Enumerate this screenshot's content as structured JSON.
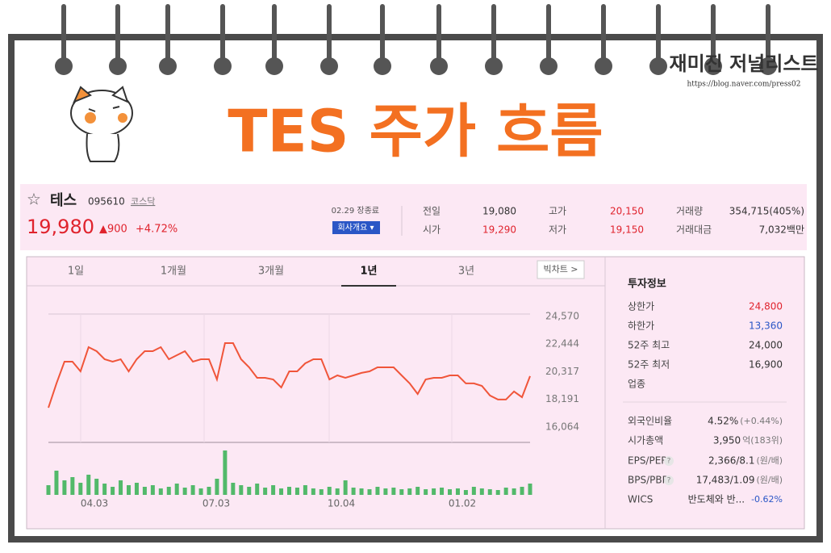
{
  "banner": {
    "title": "TES 주가 흐름",
    "blog_name": "재미진 저널리스트",
    "blog_url": "https://blog.naver.com/press02"
  },
  "stock": {
    "name": "테스",
    "code": "095610",
    "market": "코스닥",
    "price": "19,980",
    "change": "▲900",
    "change_rate": "+4.72%",
    "status": "02.29 장종료",
    "company_button": "회사개요 ▾",
    "summary": [
      {
        "label": "전일",
        "value": "19,080",
        "color": "#333333"
      },
      {
        "label": "시가",
        "value": "19,290",
        "color": "#e0232d"
      },
      {
        "label": "고가",
        "value": "20,150",
        "color": "#e0232d"
      },
      {
        "label": "저가",
        "value": "19,150",
        "color": "#e0232d"
      },
      {
        "label": "거래량",
        "value": "354,715(405%)",
        "color": "#333333"
      },
      {
        "label": "거래대금",
        "value": "7,032백만",
        "color": "#333333"
      }
    ]
  },
  "tabs": [
    "1일",
    "1개월",
    "3개월",
    "1년",
    "3년"
  ],
  "active_tab": "1년",
  "big_chart_button": "빅차트 >",
  "chart": {
    "type": "line",
    "color": "#f0553a",
    "values": [
      17550,
      19420,
      21090,
      21090,
      20350,
      22210,
      21900,
      21280,
      21090,
      21280,
      20350,
      21280,
      21900,
      21900,
      22210,
      21280,
      21590,
      21900,
      21090,
      21280,
      21280,
      19730,
      22520,
      22520,
      21280,
      20660,
      19850,
      19850,
      19730,
      19110,
      20350,
      20350,
      20970,
      21280,
      21280,
      19730,
      20040,
      19850,
      20040,
      20230,
      20350,
      20660,
      20660,
      20660,
      20040,
      19420,
      18610,
      19730,
      19850,
      19850,
      20040,
      20040,
      19420,
      19420,
      19230,
      18490,
      18180,
      18180,
      18800,
      18360,
      19980
    ],
    "ylim": [
      16064,
      24570
    ],
    "yticks": [
      {
        "value": 24570,
        "label": "24,570"
      },
      {
        "value": 22444,
        "label": "22,444"
      },
      {
        "value": 20317,
        "label": "20,317"
      },
      {
        "value": 18191,
        "label": "18,191"
      },
      {
        "value": 16064,
        "label": "16,064"
      }
    ],
    "x_labels": [
      "04.03",
      "07.03",
      "10.04",
      "01.02"
    ],
    "volume": {
      "color": "#52b96a",
      "values": [
        12,
        30,
        18,
        22,
        15,
        25,
        20,
        14,
        10,
        18,
        12,
        15,
        10,
        12,
        8,
        10,
        14,
        9,
        12,
        8,
        10,
        20,
        55,
        15,
        12,
        10,
        14,
        9,
        12,
        8,
        10,
        9,
        12,
        8,
        7,
        10,
        8,
        18,
        9,
        8,
        7,
        10,
        8,
        9,
        7,
        8,
        10,
        7,
        8,
        9,
        7,
        8,
        6,
        10,
        8,
        7,
        6,
        9,
        8,
        10,
        14
      ]
    }
  },
  "invest_info": {
    "title": "투자정보",
    "rows": [
      {
        "label": "상한가",
        "value": "24,800",
        "color": "#e0232d"
      },
      {
        "label": "하한가",
        "value": "13,360",
        "color": "#2a56c6"
      },
      {
        "label": "52주 최고",
        "value": "24,000",
        "color": "#333333"
      },
      {
        "label": "52주 최저",
        "value": "16,900",
        "color": "#333333"
      },
      {
        "label": "업종"
      },
      {
        "label": "외국인비율",
        "value": "4.52%",
        "note": "(+0.44%)",
        "color": "#333333"
      },
      {
        "label": "시가총액",
        "value": "3,950",
        "note": "억(183위)",
        "color": "#333333"
      },
      {
        "label": "EPS/PER",
        "value": "2,366/8.1",
        "note": "(원/배)",
        "color": "#333333",
        "help": "?"
      },
      {
        "label": "BPS/PBR",
        "value": "17,483/1.09",
        "note": "(원/배)",
        "color": "#333333",
        "help": "?"
      },
      {
        "label": "WICS",
        "value": "반도체와 반...",
        "note": "-0.62%",
        "color": "#333333",
        "note_color": "#2a56c6"
      }
    ]
  }
}
